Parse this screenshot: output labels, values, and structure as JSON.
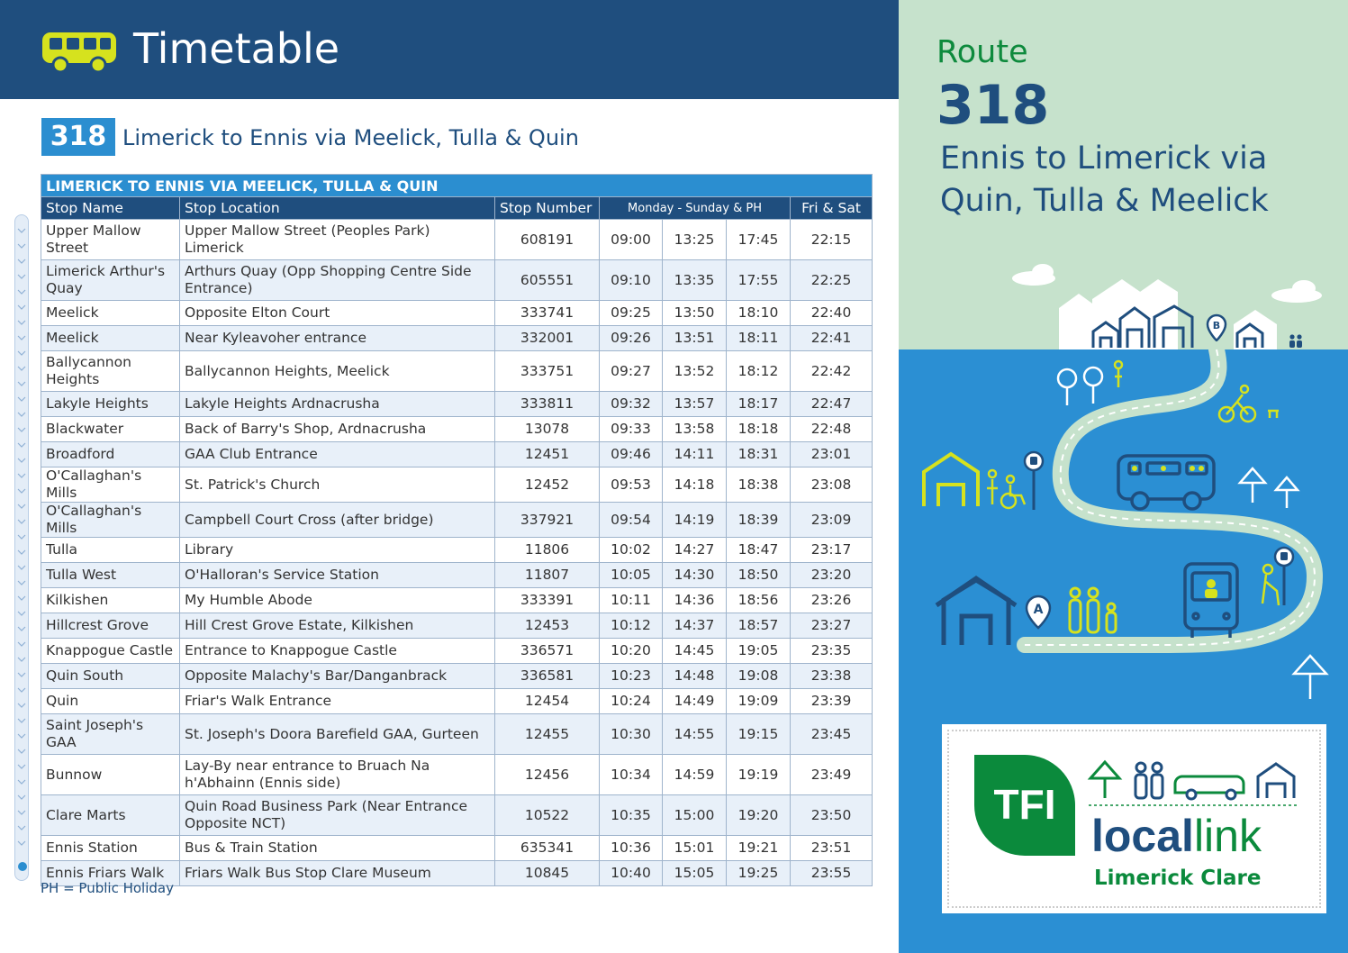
{
  "header": {
    "title": "Timetable",
    "icon": "bus-icon"
  },
  "route_heading": {
    "badge": "318",
    "title": "Limerick to Ennis via Meelick, Tulla & Quin"
  },
  "table": {
    "caption": "LIMERICK TO ENNIS VIA MEELICK, TULLA & QUIN",
    "headers": {
      "stop_name": "Stop Name",
      "stop_location": "Stop Location",
      "stop_number": "Stop Number",
      "weekday": "Monday - Sunday & PH",
      "friday_saturday": "Fri & Sat"
    },
    "rows": [
      {
        "name": "Upper Mallow Street",
        "location": "Upper Mallow Street (Peoples Park) Limerick",
        "number": "608191",
        "t1": "09:00",
        "t2": "13:25",
        "t3": "17:45",
        "t4": "22:15"
      },
      {
        "name": "Limerick Arthur's Quay",
        "location": "Arthurs Quay (Opp Shopping Centre Side Entrance)",
        "number": "605551",
        "t1": "09:10",
        "t2": "13:35",
        "t3": "17:55",
        "t4": "22:25"
      },
      {
        "name": "Meelick",
        "location": "Opposite Elton Court",
        "number": "333741",
        "t1": "09:25",
        "t2": "13:50",
        "t3": "18:10",
        "t4": "22:40"
      },
      {
        "name": "Meelick",
        "location": "Near Kyleavoher entrance",
        "number": "332001",
        "t1": "09:26",
        "t2": "13:51",
        "t3": "18:11",
        "t4": "22:41"
      },
      {
        "name": "Ballycannon Heights",
        "location": "Ballycannon Heights, Meelick",
        "number": "333751",
        "t1": "09:27",
        "t2": "13:52",
        "t3": "18:12",
        "t4": "22:42"
      },
      {
        "name": "Lakyle Heights",
        "location": "Lakyle Heights Ardnacrusha",
        "number": "333811",
        "t1": "09:32",
        "t2": "13:57",
        "t3": "18:17",
        "t4": "22:47"
      },
      {
        "name": "Blackwater",
        "location": "Back of Barry's Shop, Ardnacrusha",
        "number": "13078",
        "t1": "09:33",
        "t2": "13:58",
        "t3": "18:18",
        "t4": "22:48"
      },
      {
        "name": "Broadford",
        "location": "GAA Club Entrance",
        "number": "12451",
        "t1": "09:46",
        "t2": "14:11",
        "t3": "18:31",
        "t4": "23:01"
      },
      {
        "name": "O'Callaghan's Mills",
        "location": "St. Patrick's Church",
        "number": "12452",
        "t1": "09:53",
        "t2": "14:18",
        "t3": "18:38",
        "t4": "23:08"
      },
      {
        "name": "O'Callaghan's Mills",
        "location": "Campbell Court Cross (after bridge)",
        "number": "337921",
        "t1": "09:54",
        "t2": "14:19",
        "t3": "18:39",
        "t4": "23:09"
      },
      {
        "name": "Tulla",
        "location": "Library",
        "number": "11806",
        "t1": "10:02",
        "t2": "14:27",
        "t3": "18:47",
        "t4": "23:17"
      },
      {
        "name": "Tulla West",
        "location": "O'Halloran's Service Station",
        "number": "11807",
        "t1": "10:05",
        "t2": "14:30",
        "t3": "18:50",
        "t4": "23:20"
      },
      {
        "name": "Kilkishen",
        "location": "My Humble Abode",
        "number": "333391",
        "t1": "10:11",
        "t2": "14:36",
        "t3": "18:56",
        "t4": "23:26"
      },
      {
        "name": "Hillcrest Grove",
        "location": "Hill Crest Grove Estate, Kilkishen",
        "number": "12453",
        "t1": "10:12",
        "t2": "14:37",
        "t3": "18:57",
        "t4": "23:27"
      },
      {
        "name": "Knappogue Castle",
        "location": "Entrance to Knappogue Castle",
        "number": "336571",
        "t1": "10:20",
        "t2": "14:45",
        "t3": "19:05",
        "t4": "23:35"
      },
      {
        "name": "Quin South",
        "location": "Opposite Malachy's Bar/Danganbrack",
        "number": "336581",
        "t1": "10:23",
        "t2": "14:48",
        "t3": "19:08",
        "t4": "23:38"
      },
      {
        "name": "Quin",
        "location": "Friar's Walk Entrance",
        "number": "12454",
        "t1": "10:24",
        "t2": "14:49",
        "t3": "19:09",
        "t4": "23:39"
      },
      {
        "name": "Saint Joseph's GAA",
        "location": "St. Joseph's Doora Barefield GAA, Gurteen",
        "number": "12455",
        "t1": "10:30",
        "t2": "14:55",
        "t3": "19:15",
        "t4": "23:45"
      },
      {
        "name": "Bunnow",
        "location": "Lay-By near entrance to Bruach Na h'Abhainn (Ennis side)",
        "number": "12456",
        "t1": "10:34",
        "t2": "14:59",
        "t3": "19:19",
        "t4": "23:49"
      },
      {
        "name": "Clare Marts",
        "location": "Quin Road Business Park (Near Entrance Opposite NCT)",
        "number": "10522",
        "t1": "10:35",
        "t2": "15:00",
        "t3": "19:20",
        "t4": "23:50"
      },
      {
        "name": "Ennis Station",
        "location": "Bus & Train Station",
        "number": "635341",
        "t1": "10:36",
        "t2": "15:01",
        "t3": "19:21",
        "t4": "23:51"
      },
      {
        "name": "Ennis Friars Walk",
        "location": "Friars Walk Bus Stop Clare Museum",
        "number": "10845",
        "t1": "10:40",
        "t2": "15:05",
        "t3": "19:25",
        "t4": "23:55"
      }
    ],
    "note": "PH = Public Holiday"
  },
  "panel": {
    "route_label": "Route",
    "route_number": "318",
    "route_title": "Ennis to Limerick via Quin, Tulla & Meelick",
    "stop_marker_a": "A",
    "stop_marker_b": "B"
  },
  "logo": {
    "mark": "TFI",
    "local": "local",
    "link": "link",
    "region": "Limerick Clare"
  },
  "colors": {
    "navy": "#1f4e7e",
    "blue": "#2b8ed0",
    "green": "#0b8a3c",
    "mint": "#c6e2cc",
    "lime": "#d6e21e"
  }
}
